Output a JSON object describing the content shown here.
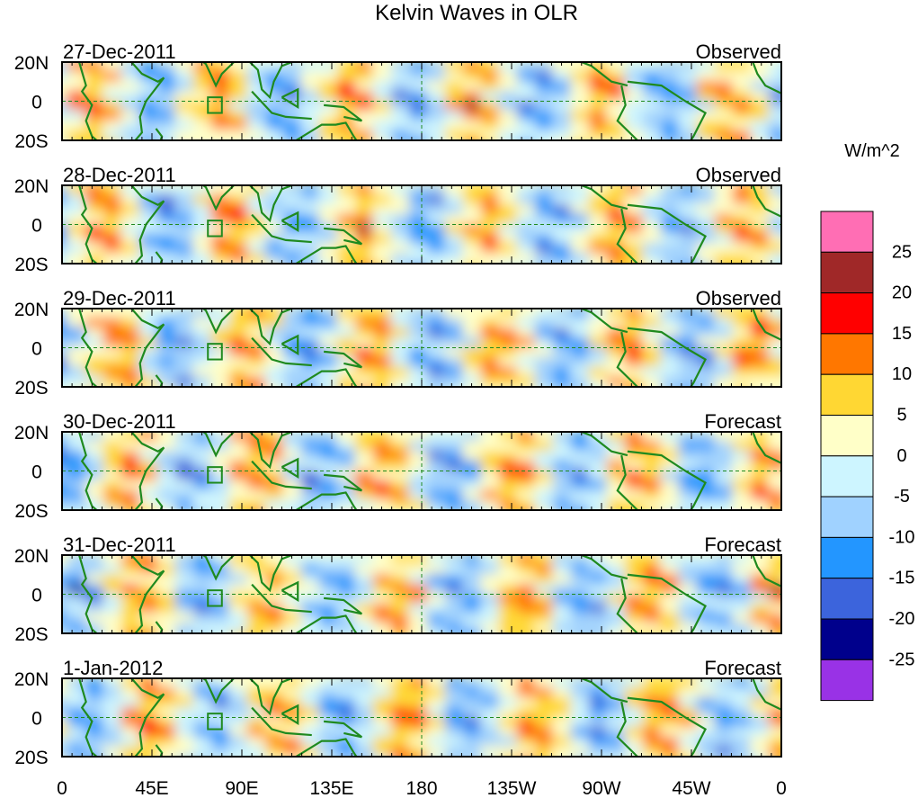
{
  "chart_data": {
    "type": "heatmap",
    "title": "Kelvin Waves in OLR",
    "units": "W/m^2",
    "x_ticks": [
      "0",
      "45E",
      "90E",
      "135E",
      "180",
      "135W",
      "90W",
      "45W",
      "0"
    ],
    "y_ticks": [
      "20N",
      "0",
      "20S"
    ],
    "panels": [
      {
        "date": "27-Dec-2011",
        "kind": "Observed"
      },
      {
        "date": "28-Dec-2011",
        "kind": "Observed"
      },
      {
        "date": "29-Dec-2011",
        "kind": "Observed"
      },
      {
        "date": "30-Dec-2011",
        "kind": "Forecast"
      },
      {
        "date": "31-Dec-2011",
        "kind": "Forecast"
      },
      {
        "date": "1-Jan-2012",
        "kind": "Forecast"
      }
    ],
    "colorbar": {
      "labels": [
        "25",
        "20",
        "15",
        "10",
        "5",
        "0",
        "-5",
        "-10",
        "-15",
        "-20",
        "-25"
      ],
      "colors": [
        "#ff6eb4",
        "#a02828",
        "#ff0000",
        "#ff7700",
        "#ffd733",
        "#ffffc8",
        "#cdf5ff",
        "#a0d2ff",
        "#2396ff",
        "#3c64dc",
        "#00008c",
        "#9932e6"
      ]
    }
  }
}
